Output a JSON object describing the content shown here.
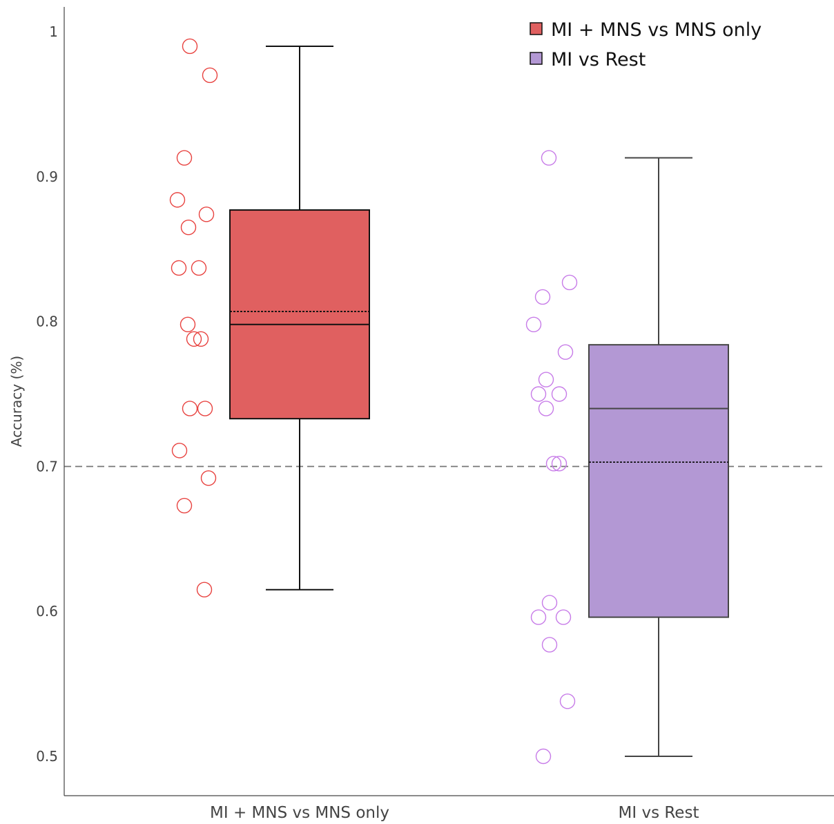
{
  "chart_data": {
    "type": "box",
    "ylabel": "Accuracy (%)",
    "ylim": [
      0.48,
      1.02
    ],
    "y_ticks": [
      0.5,
      0.6,
      0.7,
      0.8,
      0.9,
      1
    ],
    "y_tick_labels": [
      "0.5",
      "0.6",
      "0.7",
      "0.8",
      "0.9",
      "1"
    ],
    "categories": [
      "MI + MNS vs MNS only",
      "MI vs Rest"
    ],
    "reference_line": {
      "y": 0.7,
      "style": "dashed",
      "color": "#777777"
    },
    "grid": false,
    "legend": {
      "position": "top-right"
    },
    "series": [
      {
        "name": "MI + MNS vs MNS only",
        "fill_color": "#e06060",
        "point_color": "#e8423f",
        "line_color": "#111111",
        "box": {
          "min": 0.615,
          "q1": 0.733,
          "median": 0.798,
          "mean": 0.807,
          "q3": 0.877,
          "max": 0.99
        },
        "points": [
          0.99,
          0.97,
          0.913,
          0.884,
          0.874,
          0.865,
          0.837,
          0.837,
          0.798,
          0.788,
          0.788,
          0.74,
          0.74,
          0.711,
          0.692,
          0.673,
          0.615
        ]
      },
      {
        "name": "MI vs Rest",
        "fill_color": "#b398d4",
        "point_color": "#c77be8",
        "line_color": "#444444",
        "box": {
          "min": 0.5,
          "q1": 0.596,
          "median": 0.74,
          "mean": 0.703,
          "q3": 0.784,
          "max": 0.913
        },
        "points": [
          0.913,
          0.827,
          0.817,
          0.798,
          0.779,
          0.76,
          0.75,
          0.75,
          0.74,
          0.702,
          0.702,
          0.606,
          0.596,
          0.596,
          0.577,
          0.538,
          0.5
        ]
      }
    ]
  }
}
